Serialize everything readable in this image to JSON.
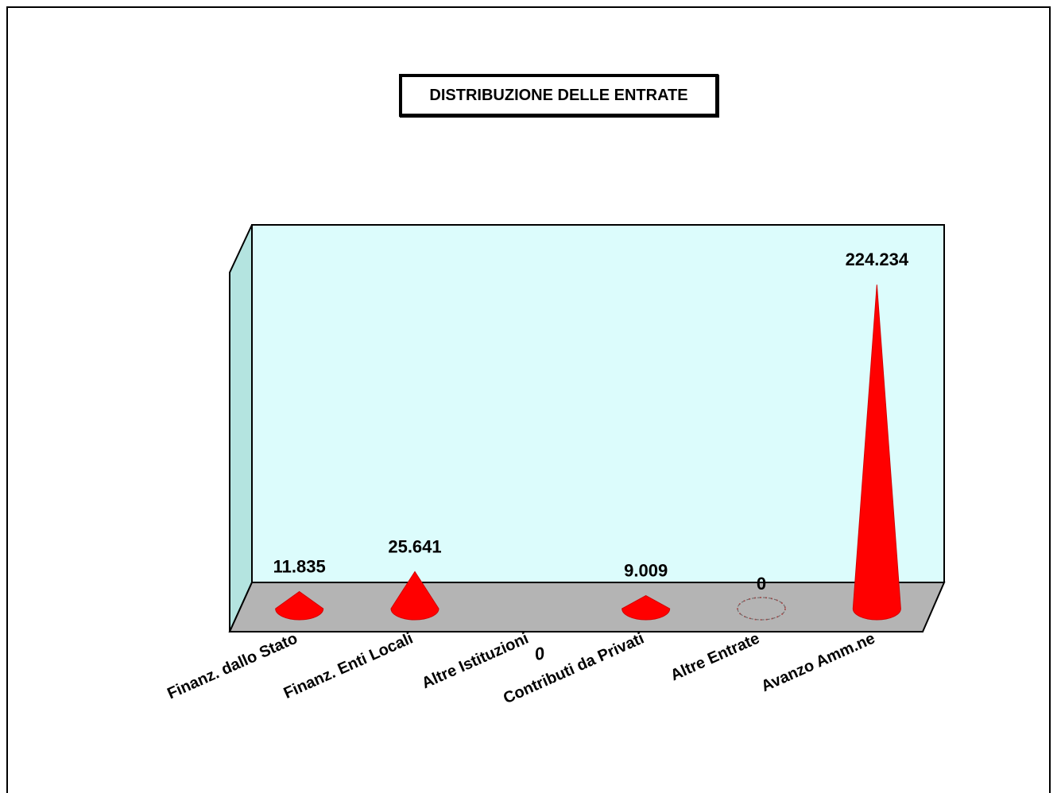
{
  "chart_data": {
    "type": "bar",
    "subtype": "3d-cone",
    "title": "DISTRIBUZIONE DELLE ENTRATE",
    "categories": [
      "Finanz. dallo Stato",
      "Finanz. Enti Locali",
      "Altre Istituzioni",
      "Contributi da Privati",
      "Altre Entrate",
      "Avanzo Amm.ne"
    ],
    "values": [
      11835,
      25641,
      0,
      9009,
      0,
      224234
    ],
    "data_labels": [
      "11.835",
      "25.641",
      "0",
      "9.009",
      "0",
      "224.234"
    ],
    "ylim": [
      0,
      270000
    ],
    "grid": false,
    "legend": "none",
    "colors": {
      "cone": "#ff0000",
      "cone_dark": "#d40000",
      "back_wall": "#dcfcfc",
      "side_wall": "#b4e4e0",
      "floor": "#b4b4b4",
      "outline": "#000000"
    }
  }
}
